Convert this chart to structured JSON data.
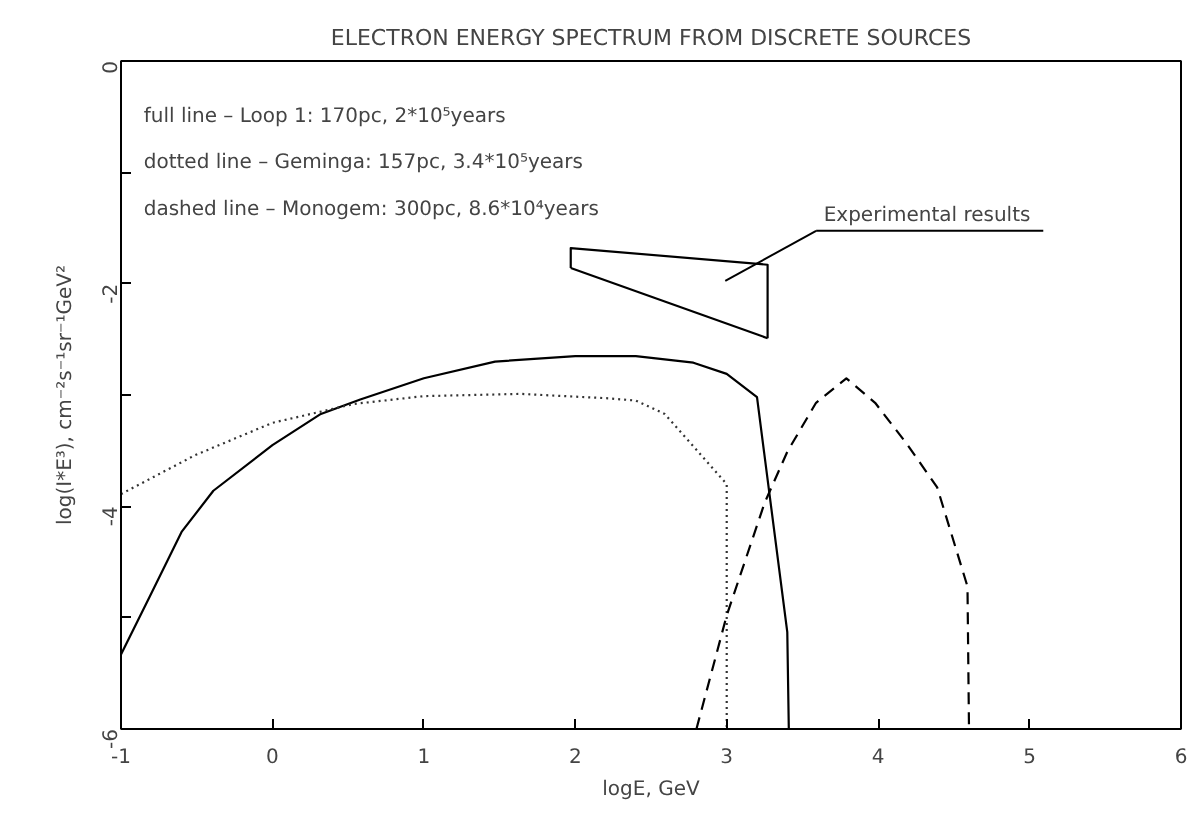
{
  "chart_data": {
    "type": "line",
    "title": "ELECTRON ENERGY SPECTRUM FROM DISCRETE SOURCES",
    "xlabel": "logE, GeV",
    "ylabel": "log(I*E³), cm⁻²s⁻¹sr⁻¹GeV²",
    "xlim": [
      -1,
      6
    ],
    "xticks": [
      -1,
      0,
      1,
      2,
      3,
      4,
      5,
      6
    ],
    "ylim": [
      -6,
      0
    ],
    "yticks": [
      0,
      {
        "value": -1,
        "label": null
      },
      -2,
      {
        "value": -3,
        "label": null
      },
      -4,
      {
        "value": -5,
        "label": null
      },
      -6
    ],
    "grid": false,
    "legend": false,
    "marker": "none",
    "series": [
      {
        "color": "#000000",
        "line_style": "solid",
        "x": [
          -1,
          -0.81,
          -0.6,
          -0.39,
          0,
          0.32,
          0.58,
          1,
          1.47,
          2,
          2.4,
          2.78,
          3.0,
          3.2,
          3.4,
          3.41
        ],
        "values": [
          -5.33,
          -4.81,
          -4.23,
          -3.86,
          -3.45,
          -3.17,
          -3.04,
          -2.85,
          -2.7,
          -2.65,
          -2.65,
          -2.71,
          -2.81,
          -3.02,
          -5.13,
          -6
        ]
      },
      {
        "color": "#333333",
        "line_style": "dotted",
        "x": [
          -1,
          -0.51,
          0,
          0.54,
          1,
          1.64,
          2.22,
          2.4,
          2.59,
          2.76,
          3.0,
          3.0
        ],
        "values": [
          -3.89,
          -3.54,
          -3.25,
          -3.08,
          -3.01,
          -2.99,
          -3.03,
          -3.05,
          -3.17,
          -3.43,
          -3.8,
          -6
        ]
      },
      {
        "color": "#000000",
        "line_style": "dashed",
        "x": [
          2.8,
          3.0,
          3.25,
          3.4,
          3.59,
          3.79,
          3.98,
          4.19,
          4.39,
          4.59,
          4.6
        ],
        "values": [
          -6,
          -4.98,
          -3.97,
          -3.51,
          -3.07,
          -2.85,
          -3.07,
          -3.44,
          -3.83,
          -4.72,
          -6
        ]
      },
      {
        "name": "Experimental results",
        "color": "#000000",
        "line_style": "solid",
        "x": [
          1.97,
          1.97,
          3.27,
          3.27
        ],
        "values": [
          -1.86,
          -1.68,
          -1.83,
          -2.49
        ]
      },
      {
        "color": "#000000",
        "line_style": "solid",
        "x": [
          1.97,
          3.27
        ],
        "values": [
          -1.86,
          -2.49
        ]
      }
    ],
    "annotations": [
      "full line – Loop 1: 170pc, 2*10⁵years",
      "dotted line – Geminga: 157pc, 3.4*10⁵years",
      "dashed line – Monogem: 300pc, 8.6*10⁴years"
    ]
  }
}
